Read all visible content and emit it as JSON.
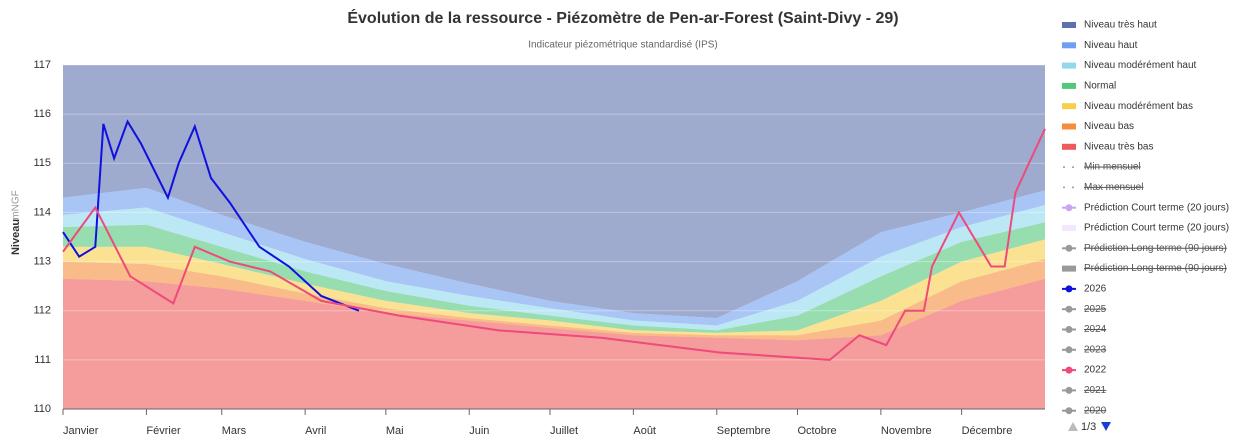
{
  "chart_data": {
    "type": "line",
    "title": "Évolution de la ressource - Piézomètre de Pen-ar-Forest (Saint-Divy - 29)",
    "subtitle": "Indicateur piézométrique standardisé (IPS)",
    "y_label": "Niveau",
    "y_unit": "mNGF",
    "xlim": [
      0,
      365
    ],
    "ylim": [
      110,
      117
    ],
    "yticks": [
      110,
      111,
      112,
      113,
      114,
      115,
      116,
      117
    ],
    "grid": true,
    "xticks": [
      {
        "value": 0,
        "label": "Janvier"
      },
      {
        "value": 31,
        "label": "Février"
      },
      {
        "value": 59,
        "label": "Mars"
      },
      {
        "value": 90,
        "label": "Avril"
      },
      {
        "value": 120,
        "label": "Mai"
      },
      {
        "value": 151,
        "label": "Juin"
      },
      {
        "value": 181,
        "label": "Juillet"
      },
      {
        "value": 212,
        "label": "Août"
      },
      {
        "value": 243,
        "label": "Septembre"
      },
      {
        "value": 273,
        "label": "Octobre"
      },
      {
        "value": 304,
        "label": "Novembre"
      },
      {
        "value": 334,
        "label": "Décembre"
      }
    ],
    "x": [
      0,
      31,
      59,
      90,
      120,
      151,
      181,
      212,
      243,
      273,
      304,
      334,
      365
    ],
    "series": [
      {
        "name": "Niveau très haut",
        "kind": "band",
        "color": "#5d72ad",
        "values": [
          117,
          117,
          117,
          117,
          117,
          117,
          117,
          117,
          117,
          117,
          117,
          117,
          117
        ]
      },
      {
        "name": "Niveau haut",
        "kind": "band",
        "color": "#6f9ff0",
        "values": [
          114.3,
          114.5,
          113.95,
          113.4,
          112.95,
          112.55,
          112.2,
          111.95,
          111.85,
          112.6,
          113.6,
          114.0,
          114.45
        ]
      },
      {
        "name": "Niveau modérément haut",
        "kind": "band",
        "color": "#8fd8ee",
        "values": [
          113.95,
          114.1,
          113.6,
          113.05,
          112.6,
          112.3,
          112.05,
          111.8,
          111.7,
          112.2,
          113.1,
          113.7,
          114.15
        ]
      },
      {
        "name": "Normal",
        "kind": "band",
        "color": "#54c77a",
        "values": [
          113.7,
          113.75,
          113.3,
          112.8,
          112.4,
          112.1,
          111.9,
          111.7,
          111.6,
          111.9,
          112.7,
          113.4,
          113.8
        ]
      },
      {
        "name": "Niveau modérément bas",
        "kind": "band",
        "color": "#f7cf4a",
        "values": [
          113.3,
          113.3,
          112.95,
          112.55,
          112.2,
          111.95,
          111.8,
          111.6,
          111.55,
          111.6,
          112.2,
          113.0,
          113.45
        ]
      },
      {
        "name": "Niveau bas",
        "kind": "band",
        "color": "#f58d3a",
        "values": [
          113.0,
          112.95,
          112.7,
          112.35,
          112.05,
          111.85,
          111.7,
          111.55,
          111.5,
          111.5,
          111.8,
          112.6,
          113.05
        ]
      },
      {
        "name": "Niveau très bas",
        "kind": "band",
        "color": "#ef5a5a",
        "values": [
          112.65,
          112.6,
          112.45,
          112.2,
          111.95,
          111.8,
          111.65,
          111.5,
          111.45,
          111.4,
          111.5,
          112.2,
          112.65
        ]
      },
      {
        "name": "Min mensuel",
        "kind": "dots",
        "color": "#333",
        "hidden": true
      },
      {
        "name": "Max mensuel",
        "kind": "dots",
        "color": "#333",
        "hidden": true
      },
      {
        "name": "Prédiction Court terme (20 jours)",
        "kind": "marker",
        "color": "#c9a6f0",
        "hidden": false
      },
      {
        "name": "Prédiction Court terme (20 jours)",
        "kind": "band-icon",
        "color": "#f3e8fb",
        "hidden": false
      },
      {
        "name": "Prédiction Long terme (90 jours)",
        "kind": "marker",
        "color": "#555",
        "hidden": true
      },
      {
        "name": "Prédiction Long terme (90 jours)",
        "kind": "band-icon",
        "color": "#ddd",
        "hidden": true
      },
      {
        "name": "2026",
        "kind": "line",
        "color": "#1010e0",
        "hidden": false,
        "x": [
          0,
          6,
          12,
          15,
          19,
          24,
          29,
          39,
          43,
          49,
          55,
          62,
          73,
          84,
          96,
          110
        ],
        "values": [
          113.6,
          113.1,
          113.3,
          115.8,
          115.1,
          115.85,
          115.4,
          114.3,
          115.0,
          115.75,
          114.7,
          114.2,
          113.3,
          112.9,
          112.3,
          112.0
        ]
      },
      {
        "name": "2025",
        "kind": "marker",
        "color": "#555",
        "hidden": true
      },
      {
        "name": "2024",
        "kind": "marker",
        "color": "#555",
        "hidden": true
      },
      {
        "name": "2023",
        "kind": "marker",
        "color": "#555",
        "hidden": true
      },
      {
        "name": "2022",
        "kind": "line",
        "color": "#ee4a7a",
        "hidden": false,
        "x": [
          0,
          12,
          25,
          41,
          49,
          62,
          77,
          96,
          125,
          162,
          200,
          244,
          285,
          296,
          306,
          313,
          320,
          323,
          333,
          345,
          350,
          354,
          359,
          365
        ],
        "values": [
          113.2,
          114.1,
          112.7,
          112.15,
          113.3,
          113.0,
          112.8,
          112.2,
          111.9,
          111.6,
          111.45,
          111.15,
          111.0,
          111.5,
          111.3,
          112.0,
          112.0,
          112.9,
          114.0,
          112.9,
          112.9,
          114.4,
          115.0,
          115.7
        ]
      },
      {
        "name": "2021",
        "kind": "marker",
        "color": "#555",
        "hidden": true
      },
      {
        "name": "2020",
        "kind": "marker",
        "color": "#555",
        "hidden": true
      }
    ],
    "pager": "1/3"
  }
}
